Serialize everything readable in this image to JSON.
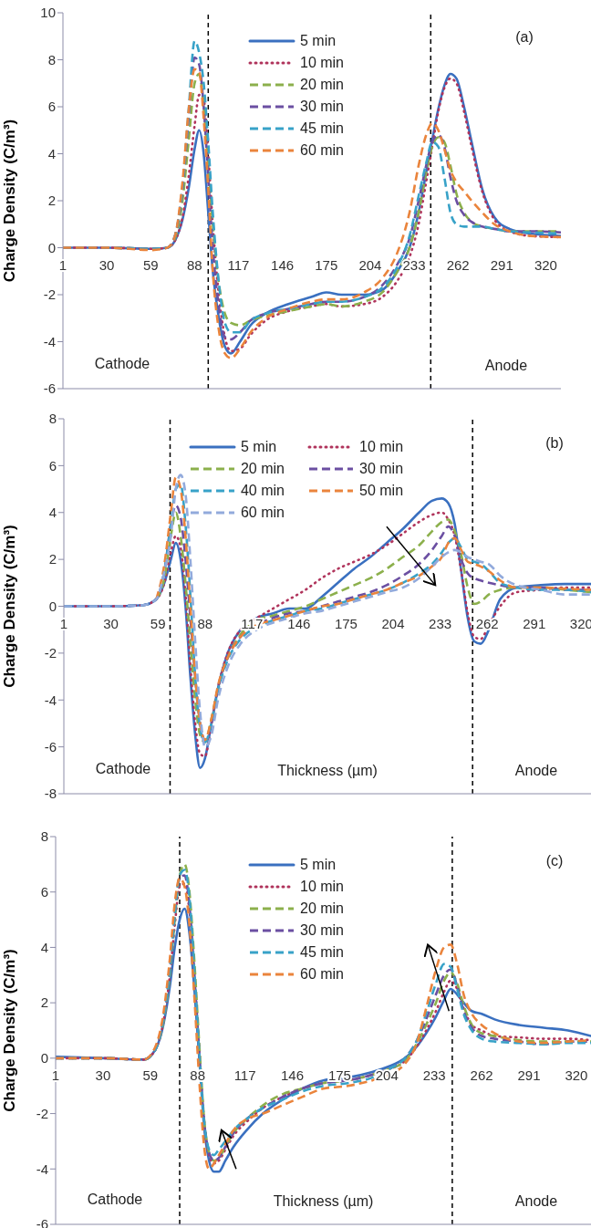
{
  "chart_data": [
    {
      "type": "line",
      "ylabel": "Charge Density (C/m³)",
      "annotations": [
        "(a)",
        "Cathode",
        "Anode"
      ],
      "legend": "top",
      "xlim": [
        1,
        330
      ],
      "xticks": [
        1,
        30,
        59,
        88,
        117,
        146,
        175,
        204,
        233,
        262,
        291,
        320
      ],
      "ylim": [
        -6,
        10
      ],
      "yticks": [
        -6,
        -4,
        -2,
        0,
        2,
        4,
        6,
        8,
        10
      ],
      "ref_lines": [
        {
          "axis": "x",
          "value": 97,
          "color": "#000000",
          "line_style": "dashed"
        },
        {
          "axis": "x",
          "value": 244,
          "color": "#000000",
          "line_style": "dashed"
        }
      ],
      "x": [
        1,
        30,
        60,
        70,
        75,
        80,
        84,
        88,
        91,
        94,
        97,
        100,
        104,
        108,
        112,
        118,
        125,
        135,
        150,
        165,
        175,
        185,
        200,
        212,
        222,
        230,
        236,
        241,
        245,
        249,
        253,
        257,
        261,
        266,
        271,
        278,
        286,
        296,
        310,
        330
      ],
      "series": [
        {
          "name": "5 min",
          "color": "#3a70c0",
          "line_style": "solid",
          "values": [
            0,
            0,
            -0.05,
            0,
            0.3,
            1.2,
            2.5,
            4.2,
            5.0,
            4.0,
            1.5,
            -1.0,
            -3.0,
            -4.2,
            -4.5,
            -4.0,
            -3.3,
            -2.8,
            -2.4,
            -2.1,
            -1.9,
            -2.0,
            -2.0,
            -1.8,
            -1.0,
            0,
            1.5,
            3.2,
            4.6,
            5.9,
            6.9,
            7.4,
            7.2,
            6.0,
            4.5,
            2.5,
            1.3,
            0.8,
            0.6,
            0.5
          ]
        },
        {
          "name": "10 min",
          "color": "#b0345c",
          "line_style": "dotted",
          "values": [
            0,
            0,
            -0.05,
            0,
            0.3,
            1.3,
            3.0,
            5.2,
            6.5,
            6.3,
            4.0,
            1.0,
            -2.0,
            -3.8,
            -4.4,
            -4.3,
            -3.7,
            -3.1,
            -2.7,
            -2.5,
            -2.4,
            -2.5,
            -2.4,
            -2.1,
            -1.4,
            -0.4,
            1.0,
            2.8,
            4.3,
            5.8,
            6.8,
            7.2,
            7.0,
            5.8,
            4.3,
            2.4,
            1.2,
            0.7,
            0.5,
            0.45
          ]
        },
        {
          "name": "20 min",
          "color": "#8cb04c",
          "line_style": "dashed",
          "values": [
            0,
            0,
            -0.05,
            0,
            0.4,
            2.0,
            4.5,
            7.0,
            7.4,
            6.0,
            3.5,
            1.0,
            -1.5,
            -2.8,
            -3.2,
            -3.3,
            -3.1,
            -2.9,
            -2.7,
            -2.5,
            -2.4,
            -2.5,
            -2.3,
            -1.9,
            -1.0,
            0,
            1.5,
            3.2,
            4.3,
            4.7,
            4.5,
            3.5,
            2.3,
            1.5,
            1.1,
            0.9,
            0.8,
            0.7,
            0.7,
            0.7
          ]
        },
        {
          "name": "30 min",
          "color": "#6b4fa2",
          "line_style": "dashed",
          "values": [
            0,
            0,
            -0.05,
            0,
            0.5,
            2.5,
            5.5,
            8.1,
            7.8,
            6.0,
            3.0,
            0,
            -2.5,
            -3.8,
            -3.9,
            -3.6,
            -3.1,
            -2.8,
            -2.6,
            -2.4,
            -2.3,
            -2.3,
            -2.1,
            -1.6,
            -0.7,
            0.4,
            2.0,
            3.5,
            4.5,
            4.8,
            4.3,
            3.0,
            2.0,
            1.4,
            1.1,
            0.9,
            0.8,
            0.7,
            0.7,
            0.65
          ]
        },
        {
          "name": "45 min",
          "color": "#38a2c8",
          "line_style": "dashed",
          "values": [
            0,
            0,
            -0.05,
            0,
            0.5,
            2.6,
            5.8,
            8.8,
            8.3,
            7.0,
            4.5,
            1.5,
            -1.5,
            -3.2,
            -3.6,
            -3.6,
            -3.1,
            -2.8,
            -2.6,
            -2.4,
            -2.3,
            -2.3,
            -2.1,
            -1.7,
            -0.8,
            0.5,
            2.2,
            3.6,
            4.5,
            4.3,
            3.0,
            1.5,
            1.0,
            0.9,
            0.9,
            0.9,
            0.8,
            0.7,
            0.65,
            0.6
          ]
        },
        {
          "name": "60 min",
          "color": "#ea843c",
          "line_style": "dashed",
          "values": [
            0,
            0,
            -0.1,
            0,
            0.5,
            2.8,
            5.8,
            7.6,
            7.5,
            5.5,
            2.5,
            -1.0,
            -3.5,
            -4.5,
            -4.7,
            -4.3,
            -3.6,
            -3.0,
            -2.6,
            -2.3,
            -2.2,
            -2.2,
            -1.9,
            -1.3,
            -0.2,
            1.5,
            3.5,
            4.8,
            5.3,
            5.0,
            4.2,
            3.3,
            2.8,
            2.4,
            2.0,
            1.5,
            1.0,
            0.7,
            0.5,
            0.45
          ]
        }
      ]
    },
    {
      "type": "line",
      "ylabel": "Charge Density (C/m³)",
      "xlabel": "Thickness (µm)",
      "annotations": [
        "(b)",
        "Cathode",
        "Anode"
      ],
      "legend": "top",
      "xlim": [
        1,
        326
      ],
      "xticks": [
        1,
        30,
        59,
        88,
        117,
        146,
        175,
        204,
        233,
        262,
        291,
        320
      ],
      "ylim": [
        -8,
        8
      ],
      "yticks": [
        -8,
        -6,
        -4,
        -2,
        0,
        2,
        4,
        6,
        8
      ],
      "ref_lines": [
        {
          "axis": "x",
          "value": 66.5,
          "color": "#000000",
          "line_style": "dashed"
        },
        {
          "axis": "x",
          "value": 253,
          "color": "#000000",
          "line_style": "dashed"
        }
      ],
      "x": [
        1,
        30,
        50,
        58,
        63,
        67,
        70,
        73,
        76,
        79,
        82,
        85,
        88,
        92,
        96,
        102,
        110,
        120,
        130,
        140,
        150,
        160,
        170,
        180,
        190,
        200,
        210,
        220,
        228,
        234,
        238,
        242,
        246,
        250,
        254,
        258,
        263,
        270,
        280,
        295,
        310,
        326
      ],
      "series": [
        {
          "name": "5 min",
          "color": "#3a70c0",
          "line_style": "solid",
          "values": [
            0,
            0,
            0.05,
            0.3,
            1.0,
            2.0,
            2.7,
            2.0,
            0,
            -3.0,
            -5.5,
            -6.9,
            -6.5,
            -5.0,
            -3.5,
            -2.0,
            -1.0,
            -0.5,
            -0.3,
            -0.1,
            -0.1,
            0.4,
            1.0,
            1.6,
            2.1,
            2.7,
            3.3,
            4.0,
            4.5,
            4.6,
            4.4,
            3.5,
            1.5,
            -0.5,
            -1.5,
            -1.6,
            -1.0,
            0.3,
            0.8,
            0.9,
            0.95,
            0.95
          ]
        },
        {
          "name": "10 min",
          "color": "#b0345c",
          "line_style": "dotted",
          "values": [
            0,
            0,
            0.05,
            0.3,
            1.0,
            2.3,
            3.0,
            2.5,
            0.5,
            -2.5,
            -5.0,
            -6.3,
            -6.4,
            -5.0,
            -3.5,
            -2.0,
            -1.0,
            -0.5,
            -0.1,
            0.3,
            0.7,
            1.2,
            1.6,
            1.9,
            2.2,
            2.6,
            3.1,
            3.6,
            3.9,
            4.0,
            3.7,
            3.0,
            1.5,
            -0.3,
            -1.3,
            -1.4,
            -0.8,
            0,
            0.6,
            0.7,
            0.8,
            0.8
          ]
        },
        {
          "name": "20 min",
          "color": "#8cb04c",
          "line_style": "dashed",
          "values": [
            null,
            null,
            null,
            0.3,
            1.2,
            3.0,
            4.0,
            3.0,
            1.0,
            -1.5,
            -4.0,
            -5.5,
            -5.8,
            -4.8,
            -3.5,
            -2.2,
            -1.2,
            -0.6,
            -0.4,
            -0.2,
            0,
            0.3,
            0.6,
            0.9,
            1.2,
            1.6,
            2.1,
            2.6,
            3.2,
            3.6,
            3.7,
            3.2,
            2.2,
            0.8,
            0.1,
            0.2,
            0.5,
            0.7,
            0.8,
            0.8,
            0.7,
            0.6
          ]
        },
        {
          "name": "30 min",
          "color": "#6b4fa2",
          "line_style": "dashed",
          "values": [
            0,
            0,
            0.05,
            0.3,
            1.5,
            3.5,
            4.3,
            3.8,
            2.0,
            -0.5,
            -3.0,
            -5.0,
            -5.7,
            -5.0,
            -3.5,
            -2.2,
            -1.3,
            -0.8,
            -0.5,
            -0.3,
            -0.2,
            0,
            0.2,
            0.4,
            0.6,
            0.9,
            1.3,
            1.8,
            2.4,
            3.0,
            3.4,
            3.0,
            2.0,
            1.4,
            1.2,
            1.1,
            1.0,
            0.9,
            0.8,
            0.8,
            0.7,
            0.7
          ]
        },
        {
          "name": "40 min",
          "color": "#38a2c8",
          "line_style": "dashed",
          "values": [
            0,
            0,
            0.05,
            0.3,
            1.5,
            3.5,
            5.0,
            5.2,
            3.5,
            0.5,
            -3.0,
            -5.2,
            -5.8,
            -5.0,
            -3.6,
            -2.3,
            -1.4,
            -0.9,
            -0.6,
            -0.4,
            -0.2,
            -0.1,
            0.1,
            0.3,
            0.5,
            0.7,
            1.0,
            1.4,
            1.8,
            2.3,
            2.7,
            2.9,
            2.5,
            2.0,
            1.9,
            1.8,
            1.5,
            1.0,
            0.8,
            0.7,
            0.7,
            0.6
          ]
        },
        {
          "name": "50 min",
          "color": "#ea843c",
          "line_style": "dashed",
          "values": [
            null,
            null,
            null,
            0.3,
            1.8,
            4.0,
            5.5,
            5.0,
            3.0,
            0,
            -3.0,
            -5.0,
            -5.7,
            -4.8,
            -3.4,
            -2.2,
            -1.3,
            -0.8,
            -0.6,
            -0.4,
            -0.2,
            0,
            0.1,
            0.3,
            0.5,
            0.7,
            1.0,
            1.3,
            1.7,
            2.1,
            2.7,
            2.9,
            2.4,
            1.9,
            1.8,
            1.7,
            1.5,
            1.1,
            0.8,
            0.8,
            0.75,
            0.7
          ]
        },
        {
          "name": "60 min",
          "color": "#92aadc",
          "line_style": "dashed",
          "values": [
            0,
            0,
            0.05,
            0.3,
            1.5,
            3.0,
            5.0,
            5.6,
            4.8,
            2.0,
            -1.5,
            -4.5,
            -6.0,
            -5.5,
            -4.0,
            -2.6,
            -1.6,
            -1.0,
            -0.7,
            -0.5,
            -0.3,
            -0.2,
            0,
            0.2,
            0.4,
            0.6,
            0.8,
            1.2,
            1.7,
            2.1,
            2.3,
            2.4,
            2.3,
            2.1,
            2.0,
            1.9,
            1.8,
            1.3,
            0.9,
            0.7,
            0.5,
            0.5
          ]
        }
      ]
    },
    {
      "type": "line",
      "ylabel": "Charge Density (C/m³)",
      "xlabel": "Thickness (µm)",
      "annotations": [
        "(c)",
        "Cathode",
        "Anode"
      ],
      "legend": "top",
      "xlim": [
        1,
        329
      ],
      "xticks": [
        1,
        30,
        59,
        88,
        117,
        146,
        175,
        204,
        233,
        262,
        291,
        320
      ],
      "ylim": [
        -6,
        8
      ],
      "yticks": [
        -6,
        -4,
        -2,
        0,
        2,
        4,
        6,
        8
      ],
      "ref_lines": [
        {
          "axis": "x",
          "value": 77,
          "color": "#000000",
          "line_style": "dashed"
        },
        {
          "axis": "x",
          "value": 244,
          "color": "#000000",
          "line_style": "dashed"
        }
      ],
      "x": [
        1,
        30,
        55,
        62,
        67,
        71,
        74,
        77,
        80,
        83,
        86,
        89,
        92,
        95,
        98,
        101,
        105,
        110,
        118,
        128,
        140,
        152,
        165,
        180,
        195,
        205,
        215,
        222,
        228,
        234,
        239,
        243,
        247,
        251,
        256,
        262,
        270,
        285,
        300,
        315,
        329
      ],
      "series": [
        {
          "name": "5 min",
          "color": "#3a70c0",
          "line_style": "solid",
          "values": [
            0.05,
            0,
            -0.05,
            0.3,
            1.2,
            2.6,
            4.0,
            5.0,
            5.4,
            4.5,
            2.5,
            0,
            -2.5,
            -3.7,
            -4.1,
            -4.1,
            -3.7,
            -3.2,
            -2.6,
            -2.0,
            -1.5,
            -1.1,
            -0.8,
            -0.7,
            -0.5,
            -0.3,
            0,
            0.4,
            0.9,
            1.5,
            2.1,
            2.5,
            2.3,
            2.0,
            1.7,
            1.6,
            1.4,
            1.2,
            1.1,
            1.0,
            0.8
          ]
        },
        {
          "name": "10 min",
          "color": "#b0345c",
          "line_style": "dotted",
          "values": [
            0,
            0,
            -0.05,
            0.3,
            1.3,
            3.0,
            4.8,
            6.2,
            6.3,
            5.3,
            3.0,
            0.3,
            -2.3,
            -3.5,
            -3.8,
            -3.7,
            -3.3,
            -2.8,
            -2.3,
            -1.8,
            -1.4,
            -1.1,
            -0.9,
            -0.8,
            -0.6,
            -0.4,
            -0.1,
            0.4,
            1.0,
            1.7,
            2.4,
            2.8,
            2.5,
            1.8,
            1.2,
            1.0,
            0.8,
            0.75,
            0.7,
            0.7,
            0.65
          ]
        },
        {
          "name": "20 min",
          "color": "#8cb04c",
          "line_style": "dashed",
          "values": [
            0,
            0,
            -0.05,
            0.3,
            1.3,
            3.0,
            5.0,
            6.6,
            7.0,
            6.0,
            3.5,
            0.5,
            -2.2,
            -3.4,
            -3.7,
            -3.6,
            -3.2,
            -2.7,
            -2.2,
            -1.7,
            -1.3,
            -1.1,
            -0.9,
            -0.8,
            -0.6,
            -0.4,
            -0.1,
            0.5,
            1.2,
            2.0,
            2.8,
            3.1,
            2.7,
            1.9,
            1.2,
            0.9,
            0.8,
            0.65,
            0.6,
            0.6,
            0.6
          ]
        },
        {
          "name": "30 min",
          "color": "#6b4fa2",
          "line_style": "dashed",
          "values": [
            0,
            0,
            -0.05,
            0.3,
            1.4,
            3.2,
            5.2,
            6.5,
            6.6,
            5.5,
            3.0,
            0.2,
            -2.3,
            -3.4,
            -3.7,
            -3.6,
            -3.2,
            -2.7,
            -2.2,
            -1.8,
            -1.4,
            -1.1,
            -0.9,
            -0.8,
            -0.6,
            -0.4,
            0,
            0.6,
            1.4,
            2.3,
            3.0,
            3.2,
            2.6,
            1.7,
            1.1,
            0.8,
            0.7,
            0.6,
            0.5,
            0.6,
            0.6
          ]
        },
        {
          "name": "45 min",
          "color": "#38a2c8",
          "line_style": "dashed",
          "values": [
            0,
            0,
            -0.05,
            0.3,
            1.4,
            3.2,
            5.2,
            6.6,
            6.8,
            5.8,
            3.2,
            0.2,
            -2.3,
            -3.3,
            -3.5,
            -3.3,
            -3.0,
            -2.6,
            -2.2,
            -1.8,
            -1.5,
            -1.2,
            -1.0,
            -0.9,
            -0.7,
            -0.4,
            0,
            0.6,
            1.6,
            2.7,
            3.4,
            3.3,
            2.5,
            1.6,
            1.0,
            0.7,
            0.6,
            0.55,
            0.5,
            0.55,
            0.55
          ]
        },
        {
          "name": "60 min",
          "color": "#ea843c",
          "line_style": "dashed",
          "values": [
            0,
            0,
            -0.05,
            0.4,
            1.6,
            3.6,
            5.6,
            6.5,
            6.2,
            4.8,
            2.2,
            -0.8,
            -3.2,
            -4.0,
            -3.8,
            -3.5,
            -3.1,
            -2.6,
            -2.2,
            -2.0,
            -1.7,
            -1.4,
            -1.1,
            -1.0,
            -0.8,
            -0.6,
            -0.2,
            0.5,
            1.8,
            3.2,
            4.0,
            4.1,
            3.4,
            2.3,
            1.6,
            1.2,
            0.9,
            0.6,
            0.55,
            0.6,
            0.65
          ]
        }
      ]
    }
  ]
}
